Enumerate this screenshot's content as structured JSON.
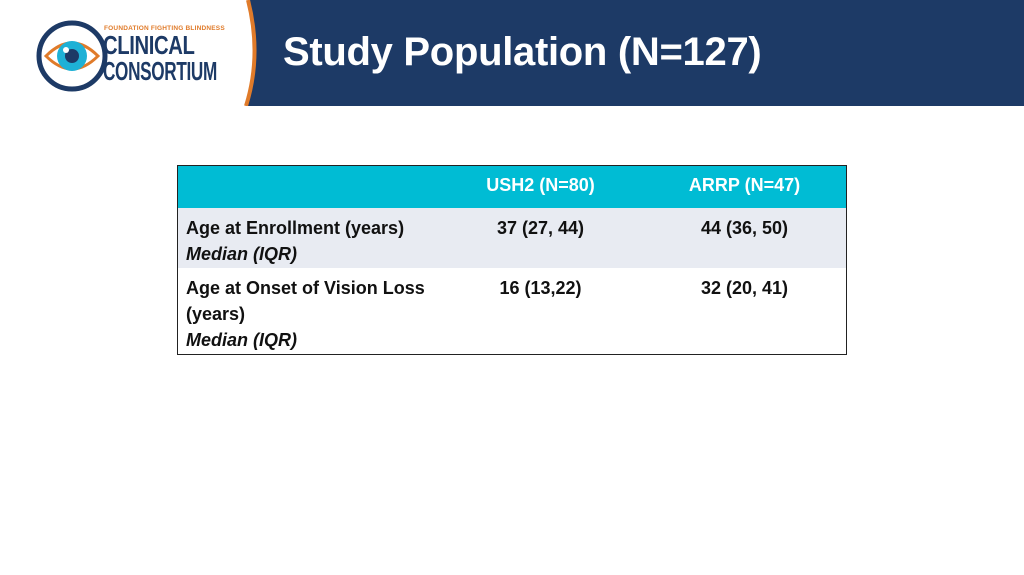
{
  "logo": {
    "tagline": "FOUNDATION FIGHTING BLINDNESS",
    "line1": "CLINICAL",
    "line2": "CONSORTIUM"
  },
  "colors": {
    "header_bg": "#1d3a66",
    "accent_orange": "#e07b2a",
    "table_header_bg": "#00bcd4",
    "table_row_shade": "#e8ebf2"
  },
  "slide": {
    "title": "Study Population (N=127)"
  },
  "table": {
    "headers": [
      "",
      "USH2 (N=80)",
      "ARRP (N=47)"
    ],
    "rows": [
      {
        "label": "Age at Enrollment (years)",
        "sublabel": "Median (IQR)",
        "values": [
          "37 (27, 44)",
          "44 (36, 50)"
        ]
      },
      {
        "label": "Age at Onset of Vision Loss (years)",
        "sublabel": "Median (IQR)",
        "values": [
          "16 (13,22)",
          "32 (20, 41)"
        ]
      }
    ]
  }
}
